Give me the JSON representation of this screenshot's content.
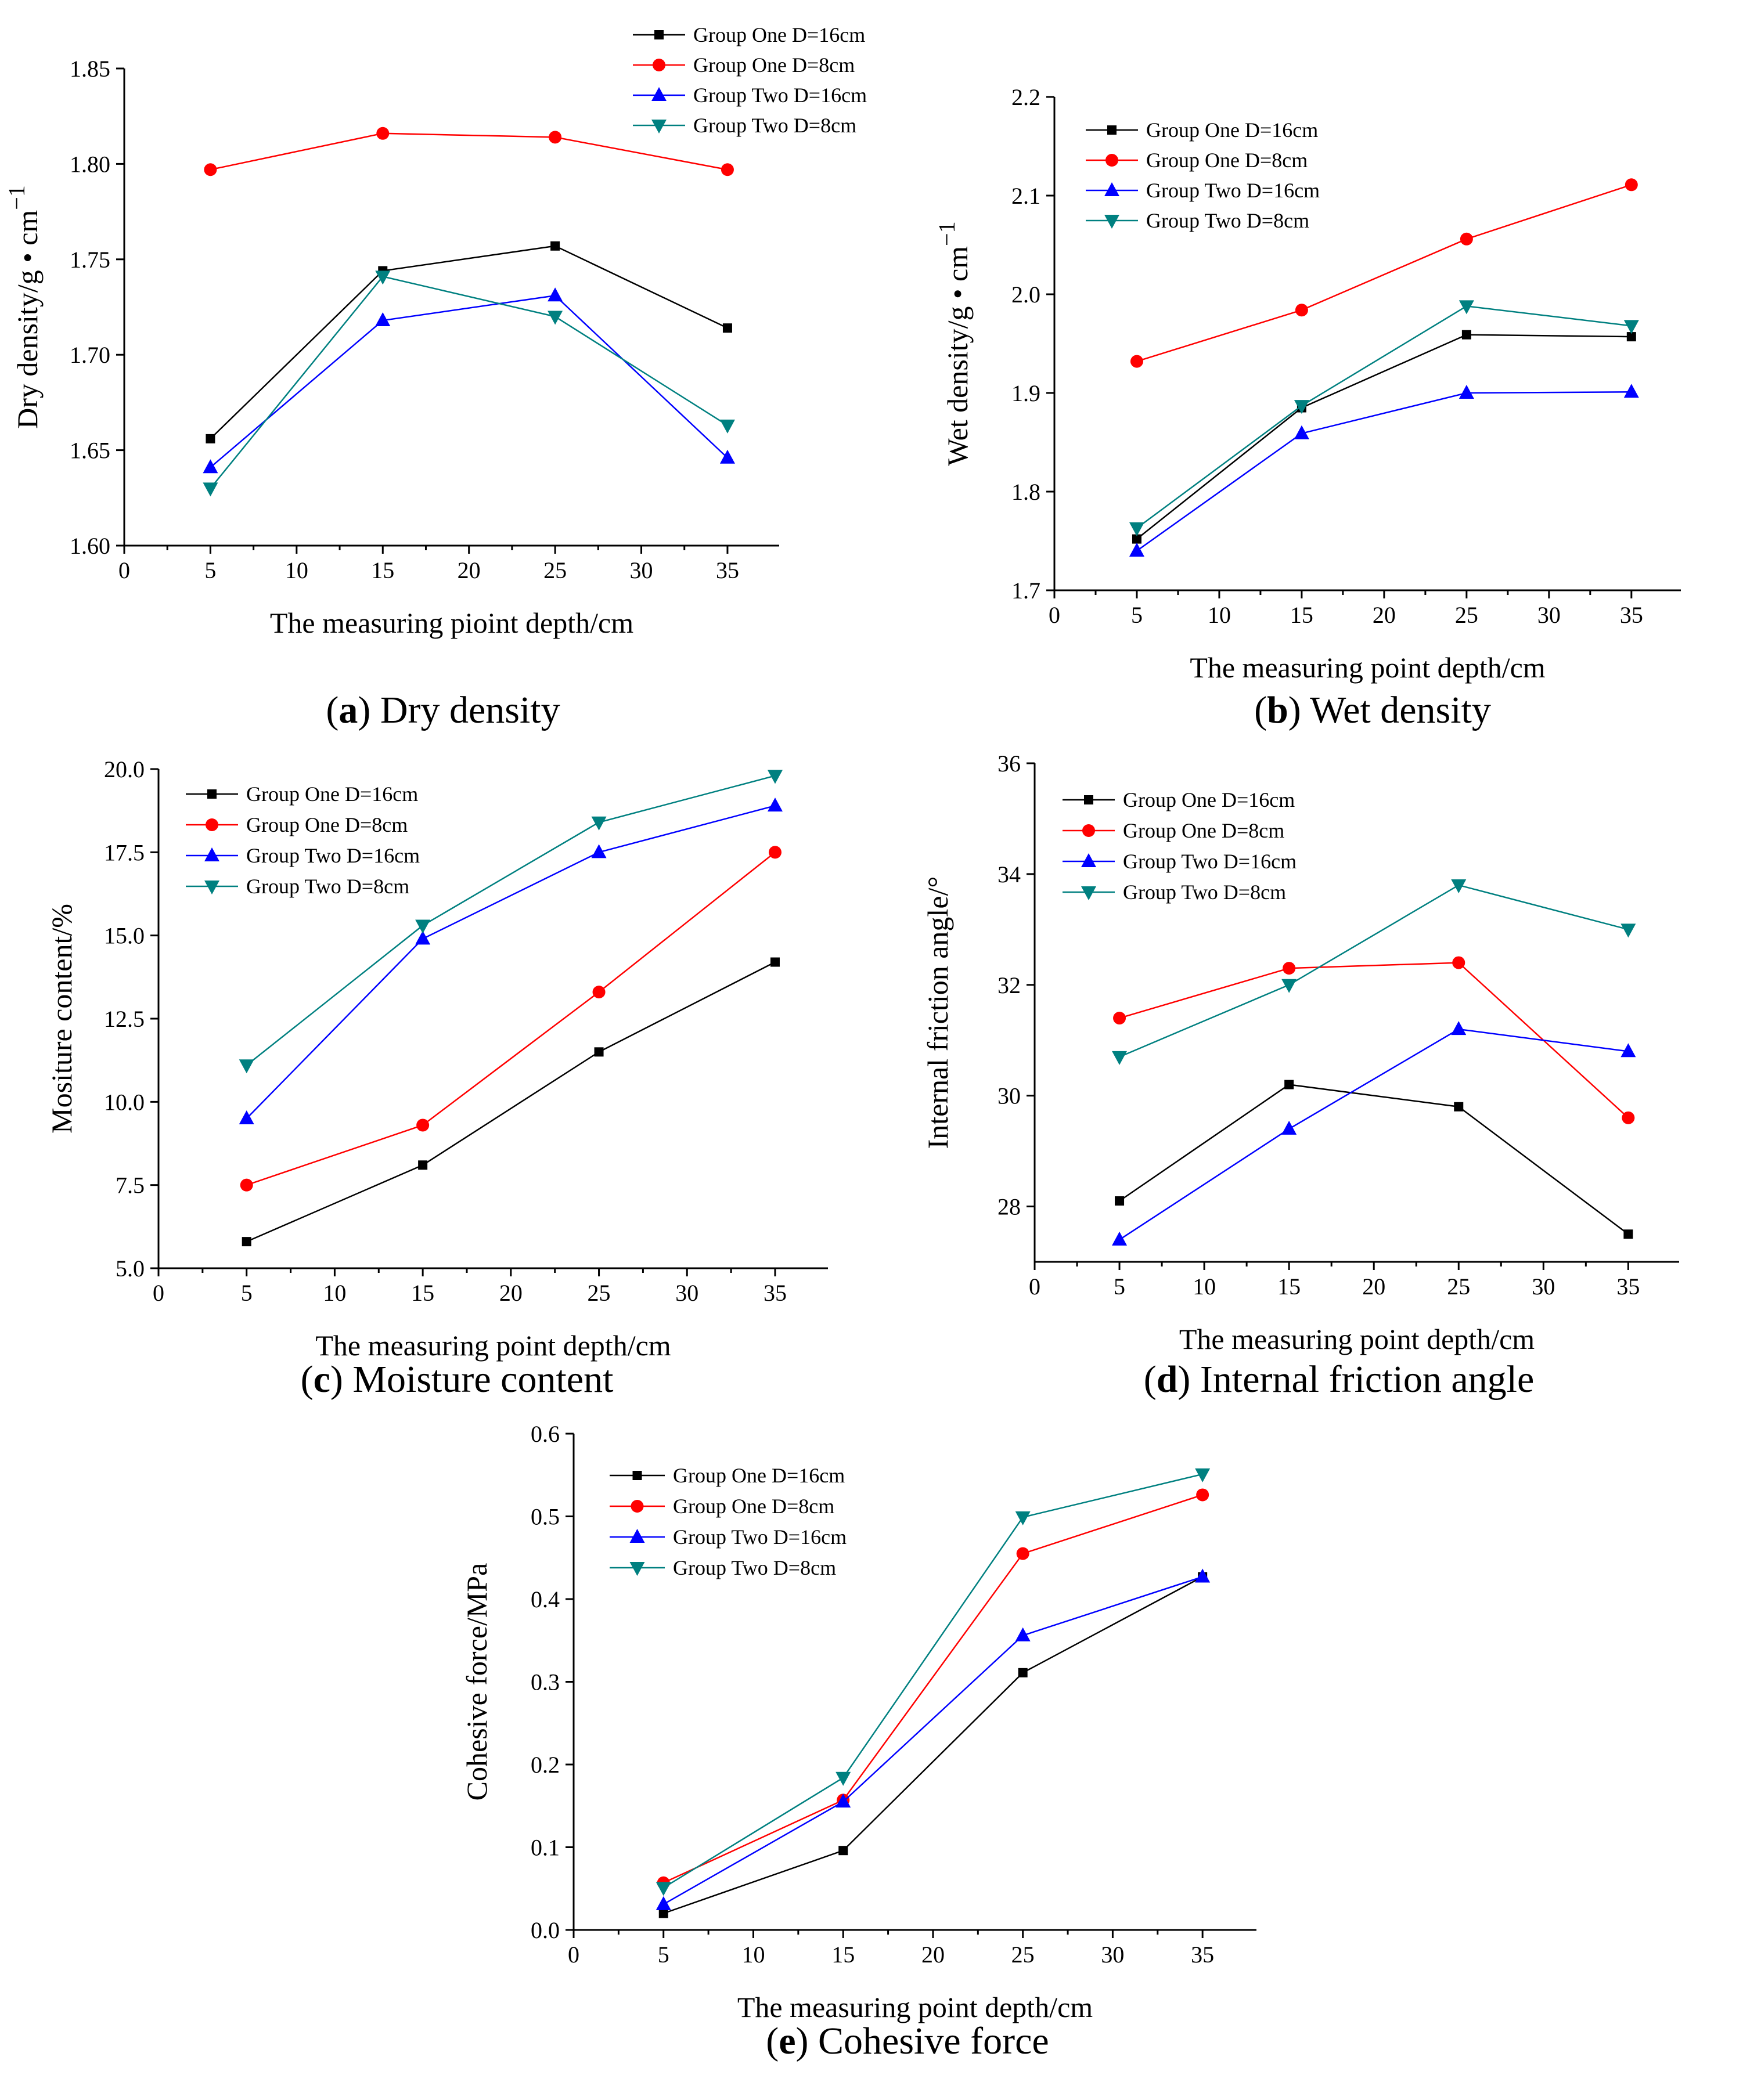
{
  "chart_data": [
    {
      "id": "a",
      "type": "line",
      "caption_letter": "a",
      "caption_text": "Dry density",
      "xlabel": "The measuring pioint depth/cm",
      "ylabel": "Dry density/g • cm",
      "ylabel_sup": "−1",
      "xlim": [
        0,
        38
      ],
      "ylim": [
        1.6,
        1.85
      ],
      "x_ticks": [
        "0",
        "5",
        "10",
        "15",
        "20",
        "25",
        "30",
        "35"
      ],
      "y_ticks": [
        "1.60",
        "1.65",
        "1.70",
        "1.75",
        "1.80",
        "1.85"
      ],
      "legend_position": "top-right",
      "x": [
        5,
        15,
        25,
        35
      ],
      "series": [
        {
          "name": "Group One D=16cm",
          "color": "#000000",
          "marker": "square",
          "values": [
            1.656,
            1.744,
            1.757,
            1.714
          ]
        },
        {
          "name": "Group One D=8cm",
          "color": "#ff0000",
          "marker": "circle",
          "values": [
            1.797,
            1.816,
            1.814,
            1.797
          ]
        },
        {
          "name": "Group Two D=16cm",
          "color": "#0000ff",
          "marker": "triangle-up",
          "values": [
            1.641,
            1.718,
            1.731,
            1.646
          ]
        },
        {
          "name": "Group Two D=8cm",
          "color": "#008080",
          "marker": "triangle-down",
          "values": [
            1.63,
            1.741,
            1.72,
            1.663
          ]
        }
      ]
    },
    {
      "id": "b",
      "type": "line",
      "caption_letter": "b",
      "caption_text": "Wet density",
      "xlabel": "The measuring point depth/cm",
      "ylabel": "Wet density/g • cm",
      "ylabel_sup": "−1",
      "xlim": [
        0,
        38
      ],
      "ylim": [
        1.7,
        2.2
      ],
      "x_ticks": [
        "0",
        "5",
        "10",
        "15",
        "20",
        "25",
        "30",
        "35"
      ],
      "y_ticks": [
        "1.7",
        "1.8",
        "1.9",
        "2.0",
        "2.1",
        "2.2"
      ],
      "legend_position": "top-left",
      "x": [
        5,
        15,
        25,
        35
      ],
      "series": [
        {
          "name": "Group One D=16cm",
          "color": "#000000",
          "marker": "square",
          "values": [
            1.752,
            1.885,
            1.959,
            1.957
          ]
        },
        {
          "name": "Group One D=8cm",
          "color": "#ff0000",
          "marker": "circle",
          "values": [
            1.932,
            1.984,
            2.056,
            2.111
          ]
        },
        {
          "name": "Group Two D=16cm",
          "color": "#0000ff",
          "marker": "triangle-up",
          "values": [
            1.74,
            1.859,
            1.9,
            1.901
          ]
        },
        {
          "name": "Group Two D=8cm",
          "color": "#008080",
          "marker": "triangle-down",
          "values": [
            1.763,
            1.887,
            1.988,
            1.968
          ]
        }
      ]
    },
    {
      "id": "c",
      "type": "line",
      "caption_letter": "c",
      "caption_text": "Moisture content",
      "xlabel": "The measuring point depth/cm",
      "ylabel": "Mositure content/%",
      "ylabel_sup": "",
      "xlim": [
        0,
        38
      ],
      "ylim": [
        5.0,
        20.0
      ],
      "x_ticks": [
        "0",
        "5",
        "10",
        "15",
        "20",
        "25",
        "30",
        "35"
      ],
      "y_ticks": [
        "5.0",
        "7.5",
        "10.0",
        "12.5",
        "15.0",
        "17.5",
        "20.0"
      ],
      "legend_position": "top-left",
      "x": [
        5,
        15,
        25,
        35
      ],
      "series": [
        {
          "name": "Group One D=16cm",
          "color": "#000000",
          "marker": "square",
          "values": [
            5.8,
            8.1,
            11.5,
            14.2
          ]
        },
        {
          "name": "Group One  D=8cm",
          "color": "#ff0000",
          "marker": "circle",
          "values": [
            7.5,
            9.3,
            13.3,
            17.5
          ]
        },
        {
          "name": "Group Two  D=16cm",
          "color": "#0000ff",
          "marker": "triangle-up",
          "values": [
            9.5,
            14.9,
            17.5,
            18.9
          ]
        },
        {
          "name": "Group Two  D=8cm",
          "color": "#008080",
          "marker": "triangle-down",
          "values": [
            11.1,
            15.3,
            18.4,
            19.8
          ]
        }
      ]
    },
    {
      "id": "d",
      "type": "line",
      "caption_letter": "d",
      "caption_text": "Internal friction angle",
      "xlabel": "The measuring point depth/cm",
      "ylabel": "Internal friction angle/°",
      "ylabel_sup": "",
      "xlim": [
        0,
        38
      ],
      "ylim": [
        27,
        36
      ],
      "x_ticks": [
        "0",
        "5",
        "10",
        "15",
        "20",
        "25",
        "30",
        "35"
      ],
      "y_ticks": [
        "28",
        "30",
        "32",
        "34",
        "36"
      ],
      "legend_position": "top-left",
      "x": [
        5,
        15,
        25,
        35
      ],
      "series": [
        {
          "name": "Group One D=16cm",
          "color": "#000000",
          "marker": "square",
          "values": [
            28.1,
            30.2,
            29.8,
            27.5
          ]
        },
        {
          "name": "Group One D=8cm",
          "color": "#ff0000",
          "marker": "circle",
          "values": [
            31.4,
            32.3,
            32.4,
            29.6
          ]
        },
        {
          "name": "Group Two D=16cm",
          "color": "#0000ff",
          "marker": "triangle-up",
          "values": [
            27.4,
            29.4,
            31.2,
            30.8
          ]
        },
        {
          "name": "Group Two D=8cm",
          "color": "#008080",
          "marker": "triangle-down",
          "values": [
            30.7,
            32.0,
            33.8,
            33.0
          ]
        }
      ]
    },
    {
      "id": "e",
      "type": "line",
      "caption_letter": "e",
      "caption_text": "Cohesive force",
      "xlabel": "The measuring point depth/cm",
      "ylabel": "Cohesive force/MPa",
      "ylabel_sup": "",
      "xlim": [
        0,
        38
      ],
      "ylim": [
        0.0,
        0.6
      ],
      "x_ticks": [
        "0",
        "5",
        "10",
        "15",
        "20",
        "25",
        "30",
        "35"
      ],
      "y_ticks": [
        "0.0",
        "0.1",
        "0.2",
        "0.3",
        "0.4",
        "0.5",
        "0.6"
      ],
      "legend_position": "top-left",
      "x": [
        5,
        15,
        25,
        35
      ],
      "series": [
        {
          "name": "Group One D=16cm",
          "color": "#000000",
          "marker": "square",
          "values": [
            0.02,
            0.096,
            0.311,
            0.427
          ]
        },
        {
          "name": "Group One D=8cm",
          "color": "#ff0000",
          "marker": "circle",
          "values": [
            0.057,
            0.157,
            0.455,
            0.526
          ]
        },
        {
          "name": "Group Two D=16cm",
          "color": "#0000ff",
          "marker": "triangle-up",
          "values": [
            0.031,
            0.155,
            0.356,
            0.427
          ]
        },
        {
          "name": "Group Two D=8cm",
          "color": "#008080",
          "marker": "triangle-down",
          "values": [
            0.051,
            0.184,
            0.499,
            0.551
          ]
        }
      ]
    }
  ]
}
